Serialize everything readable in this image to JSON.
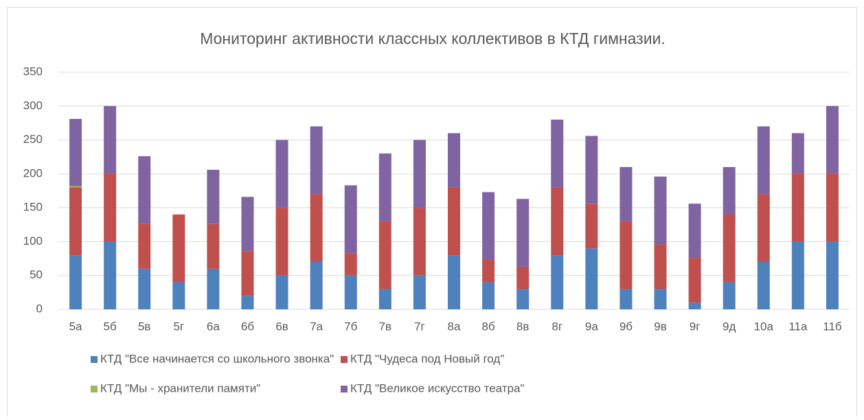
{
  "chart_data": {
    "type": "stacked_bar",
    "title": "Мониторинг активности классных коллективов в КТД гимназии.",
    "categories": [
      "5а",
      "5б",
      "5в",
      "5г",
      "6а",
      "6б",
      "6в",
      "7а",
      "7б",
      "7в",
      "7г",
      "8а",
      "8б",
      "8в",
      "8г",
      "9а",
      "9б",
      "9в",
      "9г",
      "9д",
      "10а",
      "11а",
      "11б"
    ],
    "series": [
      {
        "name": "КТД \"Все начинается со школьного звонка\"",
        "color": "#4f81bd",
        "values": [
          80,
          100,
          60,
          40,
          60,
          20,
          50,
          70,
          50,
          30,
          50,
          80,
          40,
          30,
          80,
          90,
          30,
          30,
          10,
          40,
          70,
          100,
          100
        ]
      },
      {
        "name": "КТД \"Чудеса под Новый год\"",
        "color": "#c0504d",
        "values": [
          100,
          100,
          66,
          100,
          66,
          66,
          100,
          100,
          33,
          100,
          100,
          100,
          33,
          33,
          100,
          66,
          100,
          66,
          66,
          100,
          100,
          100,
          100
        ]
      },
      {
        "name": "КТД \"Мы - хранители памяти\"",
        "color": "#9bbb59",
        "values": [
          2,
          0,
          0,
          0,
          0,
          0,
          0,
          0,
          0,
          0,
          0,
          0,
          0,
          0,
          0,
          0,
          0,
          0,
          0,
          0,
          0,
          0,
          0
        ]
      },
      {
        "name": "КТД \"Великое искусство театра\"",
        "color": "#8064a2",
        "values": [
          99,
          100,
          100,
          0,
          80,
          80,
          100,
          100,
          100,
          100,
          100,
          80,
          100,
          100,
          100,
          100,
          80,
          100,
          80,
          70,
          100,
          60,
          100
        ]
      }
    ],
    "ylim": [
      0,
      350
    ],
    "yticks": [
      0,
      50,
      100,
      150,
      200,
      250,
      300,
      350
    ],
    "grid": true
  }
}
